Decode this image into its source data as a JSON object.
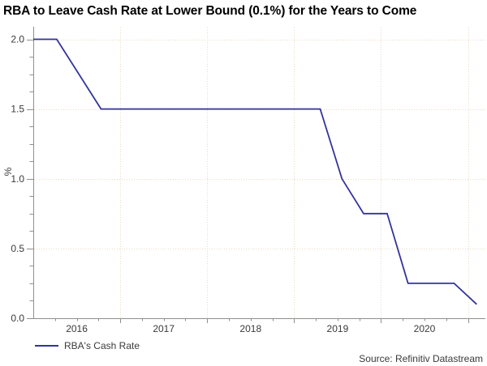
{
  "title": "RBA to Leave Cash Rate at Lower Bound (0.1%) for the Years to Come",
  "source": "Source: Refinitiv Datastream",
  "legend": {
    "label": "RBA's Cash Rate"
  },
  "colors": {
    "line": "#33339c",
    "axis": "#8f8f8f",
    "grid": "#e8dac2",
    "text": "#3a3a3a",
    "title": "#000000",
    "background": "#ffffff"
  },
  "chart_data": {
    "type": "line",
    "title": "RBA to Leave Cash Rate at Lower Bound (0.1%) for the Years to Come",
    "xlabel": "",
    "ylabel": "%",
    "xlim": [
      2016,
      2021.2
    ],
    "ylim": [
      0,
      2.09
    ],
    "x_ticks": [
      {
        "v": 2016,
        "label": "2016"
      },
      {
        "v": 2017,
        "label": "2017"
      },
      {
        "v": 2018,
        "label": "2018"
      },
      {
        "v": 2019,
        "label": "2019"
      },
      {
        "v": 2020,
        "label": "2020"
      }
    ],
    "y_ticks": [
      {
        "v": 0.0,
        "label": "0.0"
      },
      {
        "v": 0.5,
        "label": "0.5"
      },
      {
        "v": 1.0,
        "label": "1.0"
      },
      {
        "v": 1.5,
        "label": "1.5"
      },
      {
        "v": 2.0,
        "label": "2.0"
      }
    ],
    "x_minor_step": 0.25,
    "y_minor_step": 0.125,
    "grid": "dotted lines at major ticks",
    "legend_position": "bottom-left",
    "series": [
      {
        "name": "RBA's Cash Rate",
        "points": [
          {
            "x": 2016.0,
            "y": 2.0
          },
          {
            "x": 2016.27,
            "y": 2.0
          },
          {
            "x": 2016.78,
            "y": 1.5
          },
          {
            "x": 2019.3,
            "y": 1.5
          },
          {
            "x": 2019.55,
            "y": 1.0
          },
          {
            "x": 2019.8,
            "y": 0.75
          },
          {
            "x": 2020.07,
            "y": 0.75
          },
          {
            "x": 2020.31,
            "y": 0.25
          },
          {
            "x": 2020.84,
            "y": 0.25
          },
          {
            "x": 2021.1,
            "y": 0.1
          }
        ]
      }
    ]
  }
}
